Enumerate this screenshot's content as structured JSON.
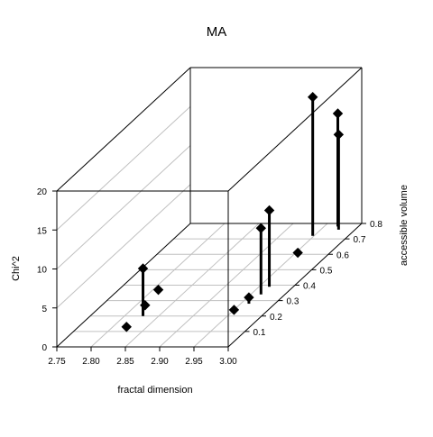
{
  "chart_data": {
    "type": "scatter3d",
    "title": "MA",
    "xlabel": "fractal dimension",
    "ylabel": "accessible volume",
    "zlabel": "Chi^2",
    "xlim": [
      2.75,
      3.0
    ],
    "ylim": [
      0.0,
      0.8
    ],
    "zlim": [
      0,
      20
    ],
    "x_ticks": [
      "2.75",
      "2.80",
      "2.85",
      "2.90",
      "2.95",
      "3.00"
    ],
    "y_ticks": [
      "0.1",
      "0.2",
      "0.3",
      "0.4",
      "0.5",
      "0.6",
      "0.7",
      "0.8"
    ],
    "z_ticks": [
      "0",
      "5",
      "10",
      "15",
      "20"
    ],
    "grid": true,
    "box": true,
    "points": [
      {
        "x": 2.82,
        "y": 0.13,
        "z": 0.0,
        "stem": false
      },
      {
        "x": 2.813,
        "y": 0.27,
        "z": 0.0,
        "stem": false
      },
      {
        "x": 2.808,
        "y": 0.37,
        "z": 0.0,
        "stem": false
      },
      {
        "x": 2.827,
        "y": 0.2,
        "z": 6.1,
        "stem": true
      },
      {
        "x": 2.95,
        "y": 0.24,
        "z": 0.0,
        "stem": false
      },
      {
        "x": 2.962,
        "y": 0.28,
        "z": 0.8,
        "stem": true
      },
      {
        "x": 2.965,
        "y": 0.34,
        "z": 8.5,
        "stem": true
      },
      {
        "x": 2.965,
        "y": 0.39,
        "z": 9.8,
        "stem": true
      },
      {
        "x": 2.953,
        "y": 0.61,
        "z": 0.0,
        "stem": false
      },
      {
        "x": 2.948,
        "y": 0.72,
        "z": 17.8,
        "stem": true
      },
      {
        "x": 2.97,
        "y": 0.78,
        "z": 14.5,
        "stem": true
      },
      {
        "x": 2.976,
        "y": 0.76,
        "z": 12.2,
        "stem": true
      }
    ]
  }
}
